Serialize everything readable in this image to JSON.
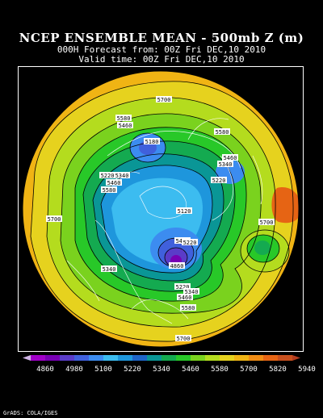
{
  "title": {
    "line1": "NCEP ENSEMBLE MEAN - 500mb Z (m)",
    "line2": "000H Forecast from: 00Z Fri DEC,10 2010",
    "line3": "Valid time: 00Z Fri DEC,10 2010"
  },
  "map": {
    "contour_labels": [
      "5700",
      "5580",
      "5460",
      "5180",
      "5580",
      "5460",
      "5340",
      "5220",
      "5220",
      "5340",
      "5460",
      "5580",
      "5120",
      "5700",
      "5700",
      "5460",
      "5220",
      "4860",
      "5340",
      "5220",
      "5340",
      "5460",
      "5580",
      "5700"
    ]
  },
  "colorbar": {
    "labels": [
      "4860",
      "4980",
      "5100",
      "5220",
      "5340",
      "5460",
      "5580",
      "5700",
      "5820",
      "5940"
    ],
    "colors": [
      "#a000c8",
      "#7800b4",
      "#5a3cc8",
      "#4060dc",
      "#3c8cf0",
      "#3cbcf0",
      "#1e96dc",
      "#1e64c8",
      "#0a9696",
      "#14aa50",
      "#28c828",
      "#7ad21e",
      "#b4dc1e",
      "#e6d21e",
      "#f0b414",
      "#f08c14",
      "#e66414",
      "#c8501e"
    ]
  },
  "credit": "GrADS: COLA/IGES"
}
